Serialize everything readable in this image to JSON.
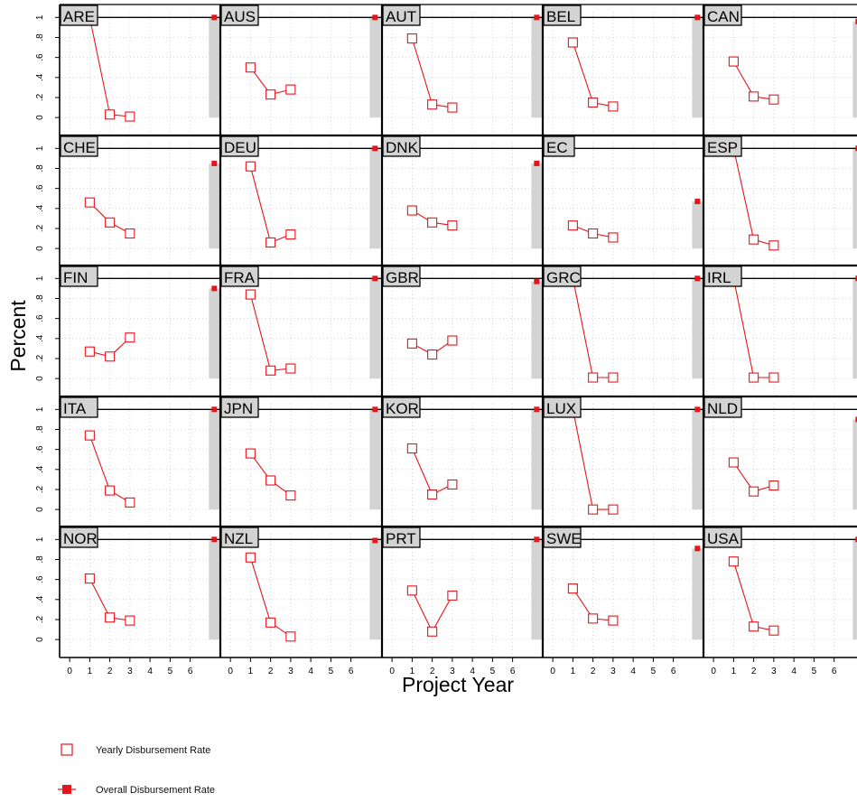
{
  "chart_data": {
    "type": "line",
    "layout": "small-multiples 5x5",
    "ylabel": "Percent",
    "xlabel": "Project Year",
    "x_ticks": [
      0,
      1,
      2,
      3,
      4,
      5,
      6
    ],
    "y_ticks": [
      0,
      0.2,
      0.4,
      0.6,
      0.8,
      1
    ],
    "y_tick_labels": [
      "0",
      ".2",
      ".4",
      ".6",
      ".8",
      "1"
    ],
    "xlim": [
      -0.5,
      7.5
    ],
    "ylim": [
      -0.08,
      1.03
    ],
    "overall_x": 7.2,
    "grid": "dotted",
    "colors": {
      "series": "#e8141c",
      "band": "#d3d3d3",
      "label_bg": "#d3d3d3"
    },
    "legend": {
      "placement": "bottom-left",
      "entries": [
        {
          "label": "Yearly Disbursement Rate",
          "marker": "open-square"
        },
        {
          "label": "Overall Disbursement Rate",
          "marker": "filled-square"
        }
      ]
    },
    "panels": [
      {
        "label": "ARE",
        "yearly": [
          [
            1,
            1.0
          ],
          [
            2,
            0.03
          ],
          [
            3,
            0.01
          ]
        ],
        "overall": 1.0
      },
      {
        "label": "AUS",
        "yearly": [
          [
            1,
            0.5
          ],
          [
            2,
            0.23
          ],
          [
            3,
            0.28
          ]
        ],
        "overall": 1.0
      },
      {
        "label": "AUT",
        "yearly": [
          [
            1,
            0.79
          ],
          [
            2,
            0.13
          ],
          [
            3,
            0.1
          ]
        ],
        "overall": 1.0
      },
      {
        "label": "BEL",
        "yearly": [
          [
            1,
            0.75
          ],
          [
            2,
            0.15
          ],
          [
            3,
            0.11
          ]
        ],
        "overall": 1.0
      },
      {
        "label": "CAN",
        "yearly": [
          [
            1,
            0.56
          ],
          [
            2,
            0.21
          ],
          [
            3,
            0.18
          ]
        ],
        "overall": 0.96
      },
      {
        "label": "CHE",
        "yearly": [
          [
            1,
            0.46
          ],
          [
            2,
            0.26
          ],
          [
            3,
            0.15
          ]
        ],
        "overall": 0.85
      },
      {
        "label": "DEU",
        "yearly": [
          [
            1,
            0.82
          ],
          [
            2,
            0.06
          ],
          [
            3,
            0.14
          ]
        ],
        "overall": 1.0
      },
      {
        "label": "DNK",
        "yearly": [
          [
            1,
            0.38
          ],
          [
            2,
            0.26
          ],
          [
            3,
            0.23
          ]
        ],
        "overall": 0.85
      },
      {
        "label": "EC",
        "yearly": [
          [
            1,
            0.23
          ],
          [
            2,
            0.15
          ],
          [
            3,
            0.11
          ]
        ],
        "overall": 0.47
      },
      {
        "label": "ESP",
        "yearly": [
          [
            1,
            1.0
          ],
          [
            2,
            0.09
          ],
          [
            3,
            0.03
          ]
        ],
        "overall": 1.0
      },
      {
        "label": "FIN",
        "yearly": [
          [
            1,
            0.27
          ],
          [
            2,
            0.22
          ],
          [
            3,
            0.41
          ]
        ],
        "overall": 0.9
      },
      {
        "label": "FRA",
        "yearly": [
          [
            1,
            0.84
          ],
          [
            2,
            0.08
          ],
          [
            3,
            0.1
          ]
        ],
        "overall": 1.0
      },
      {
        "label": "GBR",
        "yearly": [
          [
            1,
            0.35
          ],
          [
            2,
            0.24
          ],
          [
            3,
            0.38
          ]
        ],
        "overall": 0.97
      },
      {
        "label": "GRC",
        "yearly": [
          [
            1,
            1.0
          ],
          [
            2,
            0.01
          ],
          [
            3,
            0.01
          ]
        ],
        "overall": 1.0
      },
      {
        "label": "IRL",
        "yearly": [
          [
            1,
            1.0
          ],
          [
            2,
            0.01
          ],
          [
            3,
            0.01
          ]
        ],
        "overall": 1.0
      },
      {
        "label": "ITA",
        "yearly": [
          [
            1,
            0.74
          ],
          [
            2,
            0.19
          ],
          [
            3,
            0.07
          ]
        ],
        "overall": 1.0
      },
      {
        "label": "JPN",
        "yearly": [
          [
            1,
            0.56
          ],
          [
            2,
            0.29
          ],
          [
            3,
            0.14
          ]
        ],
        "overall": 1.0
      },
      {
        "label": "KOR",
        "yearly": [
          [
            1,
            0.61
          ],
          [
            2,
            0.15
          ],
          [
            3,
            0.25
          ]
        ],
        "overall": 1.0
      },
      {
        "label": "LUX",
        "yearly": [
          [
            1,
            1.0
          ],
          [
            2,
            0.0
          ],
          [
            3,
            0.0
          ]
        ],
        "overall": 1.0
      },
      {
        "label": "NLD",
        "yearly": [
          [
            1,
            0.47
          ],
          [
            2,
            0.18
          ],
          [
            3,
            0.24
          ]
        ],
        "overall": 0.9
      },
      {
        "label": "NOR",
        "yearly": [
          [
            1,
            0.61
          ],
          [
            2,
            0.22
          ],
          [
            3,
            0.19
          ]
        ],
        "overall": 1.0
      },
      {
        "label": "NZL",
        "yearly": [
          [
            1,
            0.82
          ],
          [
            2,
            0.17
          ],
          [
            3,
            0.03
          ]
        ],
        "overall": 0.99
      },
      {
        "label": "PRT",
        "yearly": [
          [
            1,
            0.49
          ],
          [
            2,
            0.08
          ],
          [
            3,
            0.44
          ]
        ],
        "overall": 1.0
      },
      {
        "label": "SWE",
        "yearly": [
          [
            1,
            0.51
          ],
          [
            2,
            0.21
          ],
          [
            3,
            0.19
          ]
        ],
        "overall": 0.91
      },
      {
        "label": "USA",
        "yearly": [
          [
            1,
            0.78
          ],
          [
            2,
            0.13
          ],
          [
            3,
            0.09
          ]
        ],
        "overall": 1.0
      }
    ]
  }
}
